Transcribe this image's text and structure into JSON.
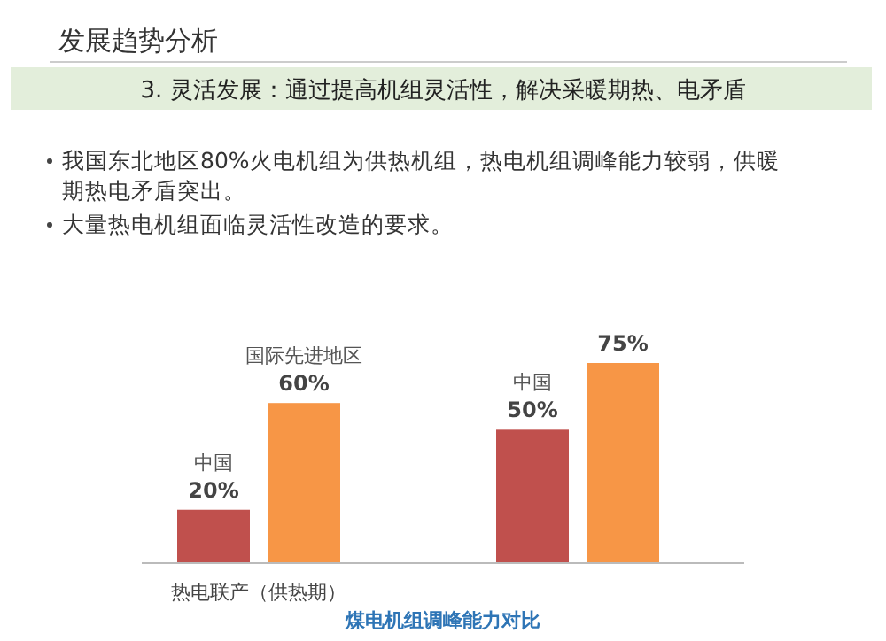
{
  "chart_data": {
    "type": "bar",
    "title": "发展趋势分析",
    "subtitle": "3. 灵活发展：通过提高机组灵活性，解决采暖期热、电矛盾",
    "annotations": [
      "我国东北地区80%火电机组为供热机组，热电机组调峰能力较弱，供暖期热电矛盾突出。",
      "大量热电机组面临灵活性改造的要求。"
    ],
    "xlabel": "煤电机组调峰能力对比",
    "categories": [
      "热电联产（供热期）",
      null
    ],
    "series": [
      {
        "name": "中国",
        "color": "#c0504d",
        "values": [
          20,
          50
        ],
        "value_labels": [
          "20%",
          "50%"
        ]
      },
      {
        "name": "国际先进地区",
        "color": "#f79646",
        "values": [
          60,
          75
        ],
        "value_labels": [
          "60%",
          "75%"
        ]
      }
    ]
  }
}
